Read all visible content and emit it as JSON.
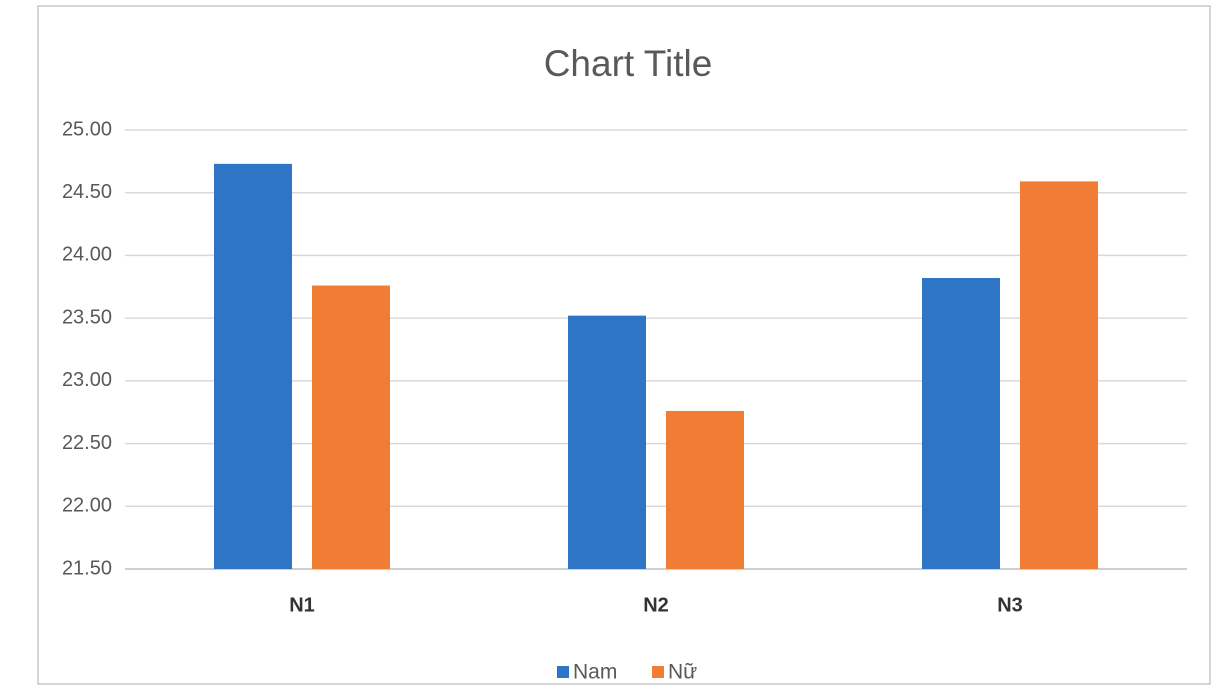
{
  "chart_data": {
    "type": "bar",
    "title": "Chart Title",
    "categories": [
      "N1",
      "N2",
      "N3"
    ],
    "series": [
      {
        "name": "Nam",
        "color": "#2e75c6",
        "values": [
          24.73,
          23.52,
          23.82
        ]
      },
      {
        "name": "Nữ",
        "color": "#f07d33",
        "values": [
          23.76,
          22.76,
          24.59
        ]
      }
    ],
    "ylim": [
      21.5,
      25
    ],
    "yticks": [
      {
        "value": 21.5,
        "label": "21.50"
      },
      {
        "value": 22,
        "label": "22.00"
      },
      {
        "value": 22.5,
        "label": "22.50"
      },
      {
        "value": 23,
        "label": "23.00"
      },
      {
        "value": 23.5,
        "label": "23.50"
      },
      {
        "value": 24,
        "label": "24.00"
      },
      {
        "value": 24.5,
        "label": "24.50"
      },
      {
        "value": 25,
        "label": "25.00"
      }
    ],
    "grid": true,
    "legend": "bottom"
  }
}
